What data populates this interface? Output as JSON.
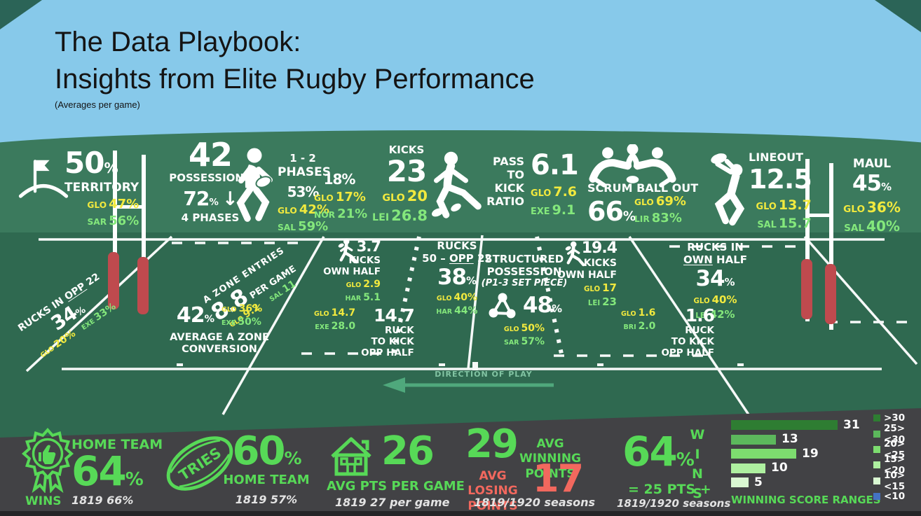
{
  "title": {
    "line1": "The Data Playbook:",
    "line2": "Insights from Elite Rugby Performance",
    "subtitle": "(Averages per game)"
  },
  "top": {
    "territory": {
      "value": "50",
      "unit": "%",
      "label": "TERRITORY",
      "teams": [
        {
          "code": "GLO",
          "value": "47%"
        },
        {
          "code": "SAR",
          "value": "56%"
        }
      ]
    },
    "possessions": {
      "value": "42",
      "label": "POSSESSIONS",
      "share_value": "72",
      "share_unit": "%",
      "arrow": "↓",
      "share_label": "4 PHASES"
    },
    "phases": {
      "title_line1": "1 - 2",
      "title_line2": "PHASES",
      "col1": {
        "value": "53%",
        "teams": [
          {
            "code": "GLO",
            "value": "42%"
          },
          {
            "code": "SAL",
            "value": "59%"
          }
        ]
      },
      "col2": {
        "value": "18%",
        "teams": [
          {
            "code": "GLO",
            "value": "17%"
          },
          {
            "code": "NOR",
            "value": "21%"
          }
        ]
      }
    },
    "kicks": {
      "label": "KICKS",
      "value": "23",
      "teams": [
        {
          "code": "GLO",
          "value": "20"
        },
        {
          "code": "LEI",
          "value": "26.8"
        }
      ]
    },
    "pass_to_kick": {
      "l1": "PASS",
      "l2": "TO",
      "l3": "KICK",
      "l4": "RATIO",
      "value": "6.1",
      "teams": [
        {
          "code": "GLO",
          "value": "7.6"
        },
        {
          "code": "EXE",
          "value": "9.1"
        }
      ]
    },
    "scrum": {
      "label": "SCRUM BALL OUT",
      "value": "66",
      "unit": "%",
      "teams": [
        {
          "code": "GLO",
          "value": "69%"
        },
        {
          "code": "LIR",
          "value": "83%"
        }
      ]
    },
    "lineout": {
      "label": "LINEOUT",
      "value": "12.5",
      "teams": [
        {
          "code": "GLO",
          "value": "13.7"
        },
        {
          "code": "SAL",
          "value": "15.7"
        }
      ]
    },
    "maul": {
      "label": "MAUL",
      "value": "45",
      "unit": "%",
      "teams": [
        {
          "code": "GLO",
          "value": "36%"
        },
        {
          "code": "SAL",
          "value": "40%"
        }
      ]
    }
  },
  "field": {
    "rucks_opp22": {
      "label_pre": "RUCKS IN ",
      "label_u": "OPP",
      "label_post": " 22",
      "value": "34",
      "unit": "%",
      "teams": [
        {
          "code": "GLO",
          "value": "20%"
        },
        {
          "code": "EXE",
          "value": "33%"
        }
      ]
    },
    "a_zone_entries": {
      "label": "A ZONE ENTRIES",
      "value": "8.8",
      "suffix": "PER GAME",
      "teams": [
        {
          "code": "GLO",
          "value": "9.2"
        },
        {
          "code": "SAL",
          "value": "11"
        }
      ]
    },
    "a_zone_conversion": {
      "value": "42",
      "unit": "%",
      "label_line1": "AVERAGE A ZONE",
      "label_line2": "CONVERSION",
      "teams": [
        {
          "code": "GLO",
          "value": "36%"
        },
        {
          "code": "EXE",
          "value": "50%"
        }
      ]
    },
    "kicks_own_half_left": {
      "value": "3.7",
      "label_line1": "KICKS",
      "label_line2": "OWN HALF",
      "teams": [
        {
          "code": "GLO",
          "value": "2.9"
        },
        {
          "code": "HAR",
          "value": "5.1"
        }
      ]
    },
    "ruck_to_kick_left": {
      "value": "14.7",
      "label_line1": "RUCK",
      "label_line2": "TO KICK",
      "label_line3": "OPP HALF",
      "teams": [
        {
          "code": "GLO",
          "value": "14.7"
        },
        {
          "code": "EXE",
          "value": "28.0"
        }
      ]
    },
    "rucks_50_opp22": {
      "label_line1": "RUCKS",
      "label2_pre": "50 – ",
      "label2_u": "OPP",
      "label2_post": " 22",
      "value": "38",
      "unit": "%",
      "teams": [
        {
          "code": "GLO",
          "value": "40%"
        },
        {
          "code": "HAR",
          "value": "44%"
        }
      ]
    },
    "structured_possession": {
      "label_line1": "STRUCTURED",
      "label_line2": "POSSESSION",
      "label_line3": "(P1-3 SET PIECE)",
      "value": "48",
      "unit": "%",
      "teams": [
        {
          "code": "GLO",
          "value": "50%"
        },
        {
          "code": "SAR",
          "value": "57%"
        }
      ]
    },
    "kicks_own_half_right": {
      "value": "19.4",
      "label_line1": "KICKS",
      "label_line2": "OWN HALF",
      "teams": [
        {
          "code": "GLO",
          "value": "17"
        },
        {
          "code": "LEI",
          "value": "23"
        }
      ]
    },
    "rucks_own_half": {
      "label_line1": "RUCKS IN",
      "label2_u": "OWN",
      "label2_post": " HALF",
      "value": "34",
      "unit": "%",
      "teams": [
        {
          "code": "GLO",
          "value": "40%"
        },
        {
          "code": "LEI",
          "value": "42%"
        }
      ]
    },
    "ruck_to_kick_right": {
      "value": "1.6",
      "label_line1": "RUCK",
      "label_line2": "TO KICK",
      "label_line3": "OPP HALF",
      "teams": [
        {
          "code": "GLO",
          "value": "1.6"
        },
        {
          "code": "BRI",
          "value": "2.0"
        }
      ]
    },
    "direction_of_play": "DIRECTION OF PLAY"
  },
  "bottom": {
    "wins_home": {
      "icon_caption": "WINS",
      "label": "HOME TEAM",
      "value": "64",
      "unit": "%",
      "history": "1819 66%"
    },
    "tries_home": {
      "ball_text": "TRIES",
      "value": "60",
      "unit": "%",
      "label": "HOME TEAM",
      "history": "1819 57%"
    },
    "avg_points": {
      "value": "26",
      "label": "AVG PTS PER GAME",
      "history": "1819 27 per game"
    },
    "winning_points": {
      "value": "29",
      "label_line1": "AVG WINNING",
      "label_line2": "POINTS"
    },
    "losing_points": {
      "value": "17",
      "label_line1": "AVG LOSING",
      "label_line2": "POINTS",
      "history": "1819/1920 seasons"
    },
    "wins_25pts": {
      "value": "64",
      "unit": "%",
      "side_label": "WINS",
      "formula": "= 25 PTS +",
      "history": "1819/1920 seasons"
    }
  },
  "chart_data": {
    "type": "bar",
    "orientation": "horizontal",
    "title": "WINNING SCORE RANGES",
    "categories": [
      ">30",
      "25><30",
      "20><25",
      "15><20",
      "10><15",
      "<10"
    ],
    "values": [
      31,
      13,
      19,
      10,
      5,
      0
    ],
    "bar_colors": [
      "#2e7d32",
      "#5cb85c",
      "#7ddc6f",
      "#aef0a0",
      "#d9f8d2",
      "#4472c4"
    ],
    "legend_position": "right",
    "note": "<10 appears in legend only; no bar shown"
  },
  "icons": {
    "territory": "flag-icon",
    "possessions_trend": "down-arrow-icon",
    "ball_carrier": "runner-with-ball-icon",
    "kicker": "kicking-player-icon",
    "scrum": "scrum-icon",
    "lineout": "lineout-jumper-icon",
    "structured_possession": "network-icon",
    "wins": "rosette-thumbs-up-icon",
    "tries": "rugby-ball-icon",
    "avg_points": "house-icon",
    "direction": "left-arrow-icon"
  },
  "colors": {
    "sky": "#87c9ea",
    "hill_green": "#3b7a5d",
    "pitch_green": "#2f6950",
    "panel_gray": "#424245",
    "accent_green": "#57d957",
    "glo_yellow": "#f1e93e",
    "team_green": "#84e87c",
    "losing_red": "#f2685e",
    "goal_pad_red": "#bf4a4e",
    "legend_blue": "#4472c4",
    "arrow_green": "#4fa87c"
  }
}
